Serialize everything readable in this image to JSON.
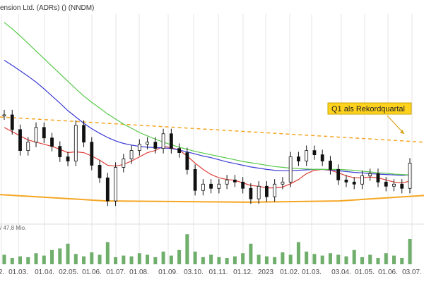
{
  "chart_data": {
    "type": "line",
    "title": "ension Ltd. (ADRs) () (NNDM)",
    "volume_label": "/ 47,8 Mio.",
    "annotation": "Q1 als Rekordquartal",
    "x_ticks": [
      "2.",
      "01.03.",
      "01.04.",
      "02.05.",
      "01.06.",
      "01.07.",
      "01.08.",
      "01.09.",
      "03.10.",
      "01.11.",
      "01.12.",
      "2023",
      "01.02.",
      "01.03.",
      "03.04.",
      "01.05.",
      "01.06.",
      "03.07."
    ],
    "colors": {
      "candle": "#111111",
      "ma_red": "#e0403a",
      "ma_blue": "#3b3bd6",
      "ma_green": "#58c84a",
      "channel": "#f5a623",
      "volume": "#6fae6b",
      "annotation_bg": "#ffd21e",
      "grid": "#e6e6e6"
    },
    "series": [
      {
        "name": "Price",
        "values": [
          3.6,
          3.25,
          2.75,
          2.95,
          3.3,
          3.05,
          2.85,
          2.6,
          2.5,
          3.35,
          2.95,
          2.4,
          2.1,
          1.55,
          2.35,
          2.55,
          2.75,
          2.9,
          2.95,
          2.8,
          3.15,
          2.8,
          2.7,
          2.3,
          1.8,
          1.95,
          1.85,
          1.95,
          2.05,
          2.0,
          1.85,
          1.6,
          1.9,
          1.65,
          1.95,
          2.0,
          2.6,
          2.5,
          2.75,
          2.65,
          2.5,
          2.3,
          2.05,
          2.0,
          1.95,
          2.15,
          2.2,
          2.0,
          1.9,
          1.95,
          1.85,
          2.45
        ]
      },
      {
        "name": "MA red",
        "values": [
          3.3,
          3.2,
          3.1,
          3.0,
          2.95,
          2.9,
          2.85,
          2.78,
          2.7,
          2.72,
          2.7,
          2.62,
          2.52,
          2.4,
          2.38,
          2.42,
          2.5,
          2.6,
          2.7,
          2.75,
          2.85,
          2.82,
          2.76,
          2.62,
          2.45,
          2.3,
          2.18,
          2.1,
          2.06,
          2.04,
          1.98,
          1.92,
          1.9,
          1.86,
          1.86,
          1.88,
          1.96,
          2.06,
          2.2,
          2.28,
          2.3,
          2.28,
          2.22,
          2.15,
          2.1,
          2.1,
          2.12,
          2.1,
          2.05,
          2.0,
          1.98,
          2.02
        ]
      },
      {
        "name": "MA blue",
        "values": [
          4.9,
          4.78,
          4.65,
          4.52,
          4.38,
          4.22,
          4.05,
          3.88,
          3.7,
          3.55,
          3.4,
          3.27,
          3.16,
          3.06,
          2.98,
          2.92,
          2.88,
          2.85,
          2.83,
          2.82,
          2.81,
          2.8,
          2.76,
          2.72,
          2.67,
          2.62,
          2.58,
          2.53,
          2.48,
          2.44,
          2.4,
          2.36,
          2.33,
          2.3,
          2.28,
          2.27,
          2.27,
          2.28,
          2.29,
          2.3,
          2.3,
          2.29,
          2.27,
          2.25,
          2.23,
          2.22,
          2.2,
          2.19,
          2.18,
          2.17,
          2.16,
          2.17
        ]
      },
      {
        "name": "MA green",
        "values": [
          5.8,
          5.65,
          5.48,
          5.3,
          5.12,
          4.94,
          4.76,
          4.58,
          4.4,
          4.22,
          4.05,
          3.9,
          3.76,
          3.62,
          3.5,
          3.38,
          3.28,
          3.18,
          3.1,
          3.02,
          2.95,
          2.89,
          2.83,
          2.78,
          2.73,
          2.69,
          2.65,
          2.61,
          2.57,
          2.53,
          2.49,
          2.46,
          2.43,
          2.4,
          2.37,
          2.35,
          2.33,
          2.32,
          2.31,
          2.3,
          2.3,
          2.3,
          2.3,
          2.29,
          2.28,
          2.26,
          2.24,
          2.22,
          2.21,
          2.19,
          2.18,
          2.17
        ]
      },
      {
        "name": "Volume",
        "values": [
          12,
          8,
          10,
          9,
          14,
          11,
          18,
          20,
          26,
          13,
          10,
          15,
          12,
          28,
          9,
          11,
          10,
          14,
          12,
          9,
          16,
          11,
          18,
          38,
          16,
          9,
          12,
          9,
          8,
          10,
          14,
          26,
          12,
          10,
          9,
          15,
          12,
          28,
          16,
          13,
          11,
          14,
          12,
          10,
          18,
          9,
          12,
          8,
          14,
          11,
          8,
          32
        ]
      }
    ],
    "channel_top": {
      "values": [
        3.55,
        2.95
      ]
    },
    "channel_bottom": {
      "values": [
        1.7,
        1.55,
        1.52,
        1.55,
        1.68
      ]
    }
  }
}
